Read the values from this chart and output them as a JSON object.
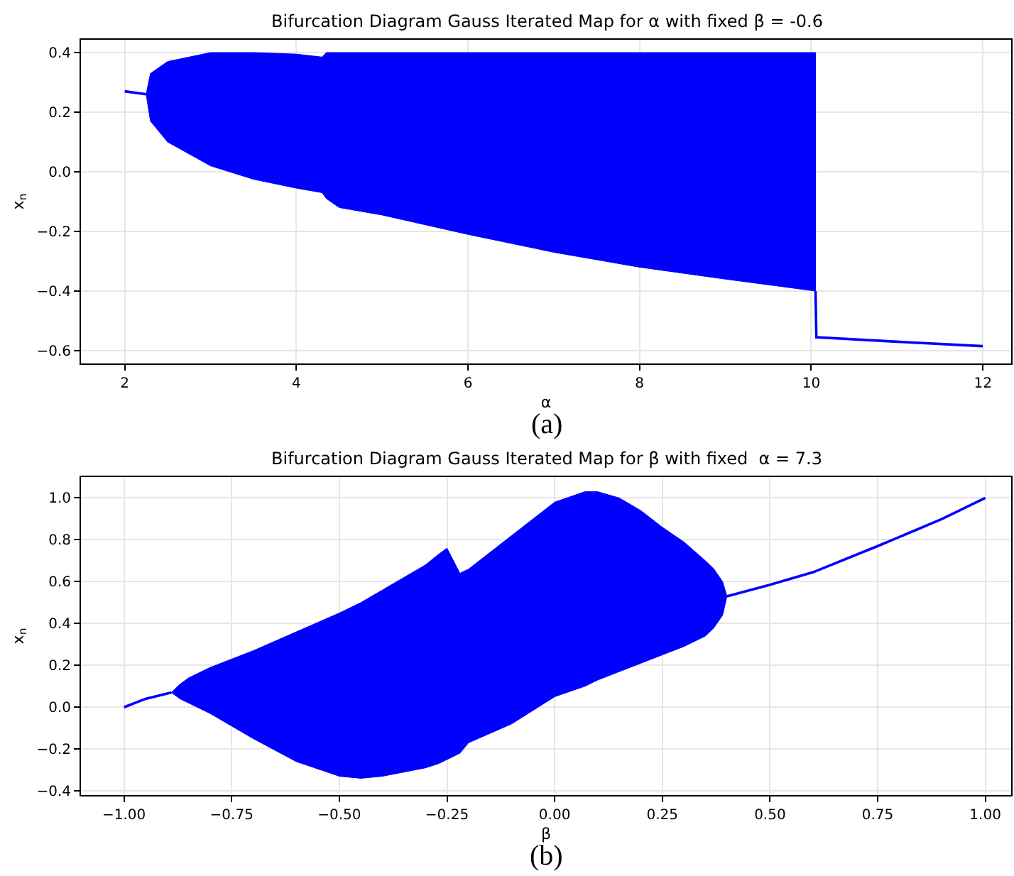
{
  "chart_data": [
    {
      "type": "line",
      "title": "Bifurcation Diagram Gauss Iterated Map for α with fixed β = -0.6",
      "xlabel": "α",
      "ylabel": "x$_{n}$",
      "annotations": [
        "(a)"
      ],
      "grid": true,
      "line_style": "solid",
      "marker": "none",
      "x": [
        2,
        2.25,
        2.3,
        2.5,
        3,
        3.5,
        4,
        4.3,
        4.35,
        4.5,
        5,
        6,
        7,
        8,
        9,
        10.05,
        10.06,
        11,
        12
      ],
      "series": [
        {
          "color": "#0000ff",
          "values": [
            0.27,
            0.26,
            null,
            null,
            null,
            null,
            null,
            null,
            null,
            null,
            null,
            null,
            null,
            null,
            null,
            -0.4,
            -0.555,
            -0.57,
            -0.585
          ],
          "upper": [
            null,
            0.26,
            0.33,
            0.37,
            0.4,
            0.4,
            0.395,
            0.385,
            0.4,
            0.4,
            0.4,
            0.4,
            0.4,
            0.4,
            0.4,
            0.4,
            null,
            null,
            null
          ],
          "lower": [
            null,
            0.26,
            0.17,
            0.1,
            0.02,
            -0.025,
            -0.055,
            -0.07,
            -0.09,
            -0.12,
            -0.145,
            -0.21,
            -0.27,
            -0.32,
            -0.36,
            -0.4,
            null,
            null,
            null
          ]
        }
      ],
      "xlim": [
        1.49,
        12.33
      ],
      "xticks": [
        2,
        4,
        6,
        8,
        10,
        12
      ],
      "ylim": [
        -0.643,
        0.443
      ],
      "yticks": [
        {
          "value": -0.6,
          "label": "−0.6"
        },
        {
          "value": -0.4,
          "label": "−0.4"
        },
        {
          "value": -0.2,
          "label": "−0.2"
        },
        {
          "value": 0,
          "label": "0.0"
        },
        0.2,
        0.4
      ]
    },
    {
      "type": "line",
      "title": "Bifurcation Diagram Gauss Iterated Map for β with fixed  α = 7.3",
      "xlabel": "β",
      "ylabel": "x$_{n}$",
      "annotations": [
        "(b)"
      ],
      "grid": true,
      "line_style": "solid",
      "marker": "none",
      "x": [
        -1,
        -0.95,
        -0.89,
        -0.87,
        -0.85,
        -0.8,
        -0.7,
        -0.6,
        -0.5,
        -0.45,
        -0.4,
        -0.3,
        -0.27,
        -0.25,
        -0.22,
        -0.2,
        -0.1,
        0,
        0.07,
        0.1,
        0.15,
        0.2,
        0.25,
        0.3,
        0.35,
        0.37,
        0.39,
        0.4,
        0.5,
        0.6,
        0.75,
        0.9,
        1.0
      ],
      "series": [
        {
          "color": "#0000ff",
          "values": [
            0,
            0.04,
            0.07,
            null,
            null,
            null,
            null,
            null,
            null,
            null,
            null,
            null,
            null,
            null,
            null,
            null,
            null,
            null,
            null,
            null,
            null,
            null,
            null,
            null,
            null,
            null,
            null,
            0.53,
            0.585,
            0.645,
            0.77,
            0.9,
            1.0
          ],
          "upper": [
            null,
            null,
            0.07,
            0.11,
            0.14,
            0.19,
            0.27,
            0.36,
            0.45,
            0.5,
            0.56,
            0.68,
            0.73,
            0.76,
            0.64,
            0.66,
            0.82,
            0.98,
            1.03,
            1.03,
            1.0,
            0.94,
            0.86,
            0.79,
            0.7,
            0.66,
            0.6,
            0.53,
            null,
            null,
            null,
            null,
            null
          ],
          "lower": [
            null,
            null,
            0.07,
            0.04,
            0.02,
            -0.03,
            -0.15,
            -0.26,
            -0.33,
            -0.34,
            -0.33,
            -0.29,
            -0.27,
            -0.25,
            -0.22,
            -0.17,
            -0.08,
            0.05,
            0.1,
            0.13,
            0.17,
            0.21,
            0.25,
            0.29,
            0.34,
            0.38,
            0.44,
            0.53,
            null,
            null,
            null,
            null,
            null
          ]
        }
      ],
      "xlim": [
        -1.1,
        1.06
      ],
      "xticks": [
        {
          "value": -1,
          "label": "−1.00"
        },
        {
          "value": -0.75,
          "label": "−0.75"
        },
        {
          "value": -0.5,
          "label": "−0.50"
        },
        {
          "value": -0.25,
          "label": "−0.25"
        },
        {
          "value": 0,
          "label": "0.00"
        },
        {
          "value": 0.25,
          "label": "0.25"
        },
        {
          "value": 0.5,
          "label": "0.50"
        },
        {
          "value": 0.75,
          "label": "0.75"
        },
        {
          "value": 1,
          "label": "1.00"
        }
      ],
      "ylim": [
        -0.42,
        1.1
      ],
      "yticks": [
        {
          "value": -0.4,
          "label": "−0.4"
        },
        {
          "value": -0.2,
          "label": "−0.2"
        },
        {
          "value": 0,
          "label": "0.0"
        },
        0.2,
        0.4,
        0.6,
        0.8,
        {
          "value": 1,
          "label": "1.0"
        }
      ]
    }
  ]
}
